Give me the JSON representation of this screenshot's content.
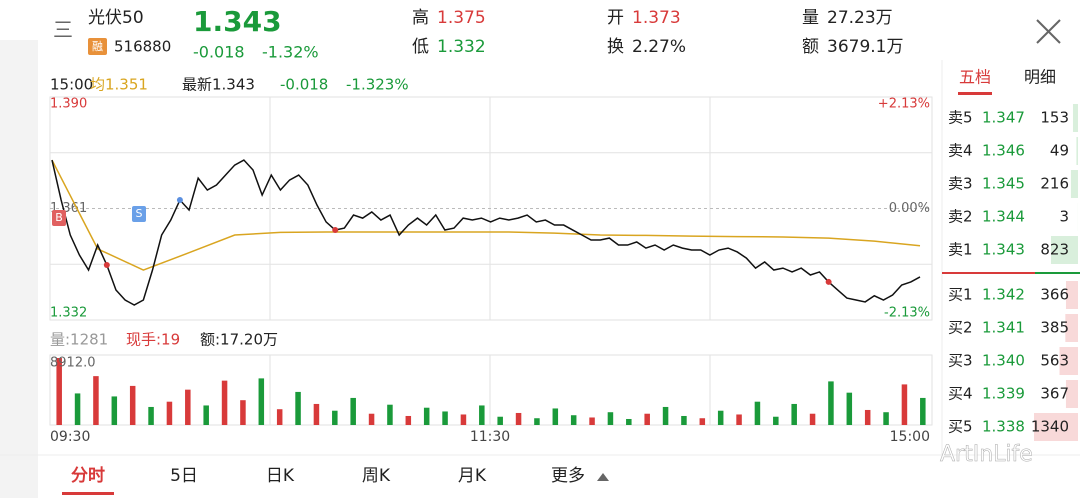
{
  "header": {
    "menu": "三",
    "name": "光伏50",
    "badge": "融",
    "code": "516880",
    "price": "1.343",
    "change": "-0.018",
    "pct": "-1.32%",
    "stats": [
      {
        "label": "高",
        "value": "1.375",
        "color": "#d83a3a"
      },
      {
        "label": "低",
        "value": "1.332",
        "color": "#1a9a3a"
      },
      {
        "label": "开",
        "value": "1.373",
        "color": "#d83a3a"
      },
      {
        "label": "换",
        "value": "2.27%",
        "color": "#222"
      },
      {
        "label": "量",
        "value": "27.23万",
        "color": "#222"
      },
      {
        "label": "额",
        "value": "3679.1万",
        "color": "#222"
      }
    ]
  },
  "info": {
    "time": "15:00",
    "avg": "均1.351",
    "latest": "最新1.343",
    "change": "-0.018",
    "pct": "-1.323%"
  },
  "chart": {
    "ylim": [
      1.332,
      1.39
    ],
    "yticks": [
      {
        "value": 1.39,
        "label": "1.390"
      },
      {
        "value": 1.361,
        "label": "1.361"
      },
      {
        "value": 1.332,
        "label": "1.332"
      }
    ],
    "pct_labels": [
      "+2.13%",
      "0.00%",
      "-2.13%"
    ],
    "price": [
      1.3736,
      1.3632,
      1.3541,
      1.3489,
      1.345,
      1.3515,
      1.3463,
      1.3398,
      1.3372,
      1.3359,
      1.3372,
      1.345,
      1.3541,
      1.358,
      1.3632,
      1.3606,
      1.3689,
      1.3658,
      1.3671,
      1.3697,
      1.3723,
      1.3736,
      1.371,
      1.3645,
      1.3697,
      1.3658,
      1.3684,
      1.3697,
      1.3671,
      1.3619,
      1.3575,
      1.3554,
      1.3559,
      1.3593,
      1.3585,
      1.3601,
      1.358,
      1.3593,
      1.3541,
      1.3567,
      1.3585,
      1.3567,
      1.3593,
      1.3554,
      1.3559,
      1.3585,
      1.358,
      1.3585,
      1.3575,
      1.3585,
      1.358,
      1.3585,
      1.3593,
      1.3575,
      1.358,
      1.3567,
      1.3567,
      1.3554,
      1.3541,
      1.3528,
      1.3528,
      1.3533,
      1.3515,
      1.3515,
      1.3523,
      1.3507,
      1.3515,
      1.3502,
      1.3515,
      1.3507,
      1.3502,
      1.3502,
      1.3489,
      1.3502,
      1.3507,
      1.3497,
      1.3481,
      1.3455,
      1.3471,
      1.345,
      1.3455,
      1.3445,
      1.3455,
      1.3437,
      1.3445,
      1.3419,
      1.3398,
      1.3377,
      1.3372,
      1.3367,
      1.3383,
      1.3372,
      1.3385,
      1.3411,
      1.3419,
      1.3432
    ],
    "price_color": "#111",
    "avg": [
      1.3736,
      1.3505,
      1.345,
      1.3495,
      1.3541,
      1.3548,
      1.3549,
      1.3549,
      1.3549,
      1.3549,
      1.3549,
      1.3546,
      1.3541,
      1.354,
      1.3538,
      1.3537,
      1.3536,
      1.3533,
      1.3525,
      1.3513
    ],
    "avg_color": "#d9a520",
    "buy_mark": "B",
    "sell_mark": "S",
    "volume_label": "量:1281",
    "hand_label": "现手:19",
    "amount_label": "额:17.20万",
    "volume_max": {
      "value": 8912,
      "label": "8912.0"
    },
    "volume": [
      8912,
      4200,
      6500,
      3800,
      5200,
      2400,
      3100,
      4700,
      2600,
      5900,
      3300,
      6200,
      2100,
      4400,
      2800,
      1900,
      3600,
      1500,
      2700,
      1200,
      2300,
      1800,
      1400,
      2600,
      1100,
      1600,
      900,
      2200,
      1300,
      1000,
      1700,
      800,
      1500,
      2400,
      1200,
      900,
      1900,
      1400,
      3100,
      1100,
      2800,
      1500,
      5800,
      4300,
      2000,
      1700,
      5400,
      3600
    ],
    "volume_colors": [
      "#d83a3a",
      "#1a9a3a",
      "#d83a3a",
      "#1a9a3a",
      "#d83a3a",
      "#1a9a3a",
      "#d83a3a",
      "#d83a3a",
      "#1a9a3a",
      "#d83a3a",
      "#d83a3a",
      "#1a9a3a",
      "#d83a3a",
      "#1a9a3a",
      "#d83a3a",
      "#1a9a3a",
      "#1a9a3a",
      "#d83a3a",
      "#1a9a3a",
      "#d83a3a",
      "#1a9a3a",
      "#1a9a3a",
      "#d83a3a",
      "#1a9a3a",
      "#1a9a3a",
      "#d83a3a",
      "#1a9a3a",
      "#1a9a3a",
      "#1a9a3a",
      "#d83a3a",
      "#1a9a3a",
      "#1a9a3a",
      "#d83a3a",
      "#1a9a3a",
      "#1a9a3a",
      "#d83a3a",
      "#1a9a3a",
      "#d83a3a",
      "#1a9a3a",
      "#1a9a3a",
      "#1a9a3a",
      "#d83a3a",
      "#1a9a3a",
      "#1a9a3a",
      "#d83a3a",
      "#1a9a3a",
      "#d83a3a",
      "#1a9a3a"
    ],
    "times": [
      "09:30",
      "11:30",
      "15:00"
    ]
  },
  "book": {
    "tabs": [
      "五档",
      "明细"
    ],
    "sells": [
      {
        "label": "卖5",
        "price": "1.347",
        "vol": 153
      },
      {
        "label": "卖4",
        "price": "1.346",
        "vol": 49
      },
      {
        "label": "卖3",
        "price": "1.345",
        "vol": 216
      },
      {
        "label": "卖2",
        "price": "1.344",
        "vol": 3
      },
      {
        "label": "卖1",
        "price": "1.343",
        "vol": 823
      }
    ],
    "buys": [
      {
        "label": "买1",
        "price": "1.342",
        "vol": 366
      },
      {
        "label": "买2",
        "price": "1.341",
        "vol": 385
      },
      {
        "label": "买3",
        "price": "1.340",
        "vol": 563
      },
      {
        "label": "买4",
        "price": "1.339",
        "vol": 367
      },
      {
        "label": "买5",
        "price": "1.338",
        "vol": 1340
      }
    ]
  },
  "tabs": [
    "分时",
    "5日",
    "日K",
    "周K",
    "月K",
    "更多"
  ],
  "watermark": "ArtInLife"
}
